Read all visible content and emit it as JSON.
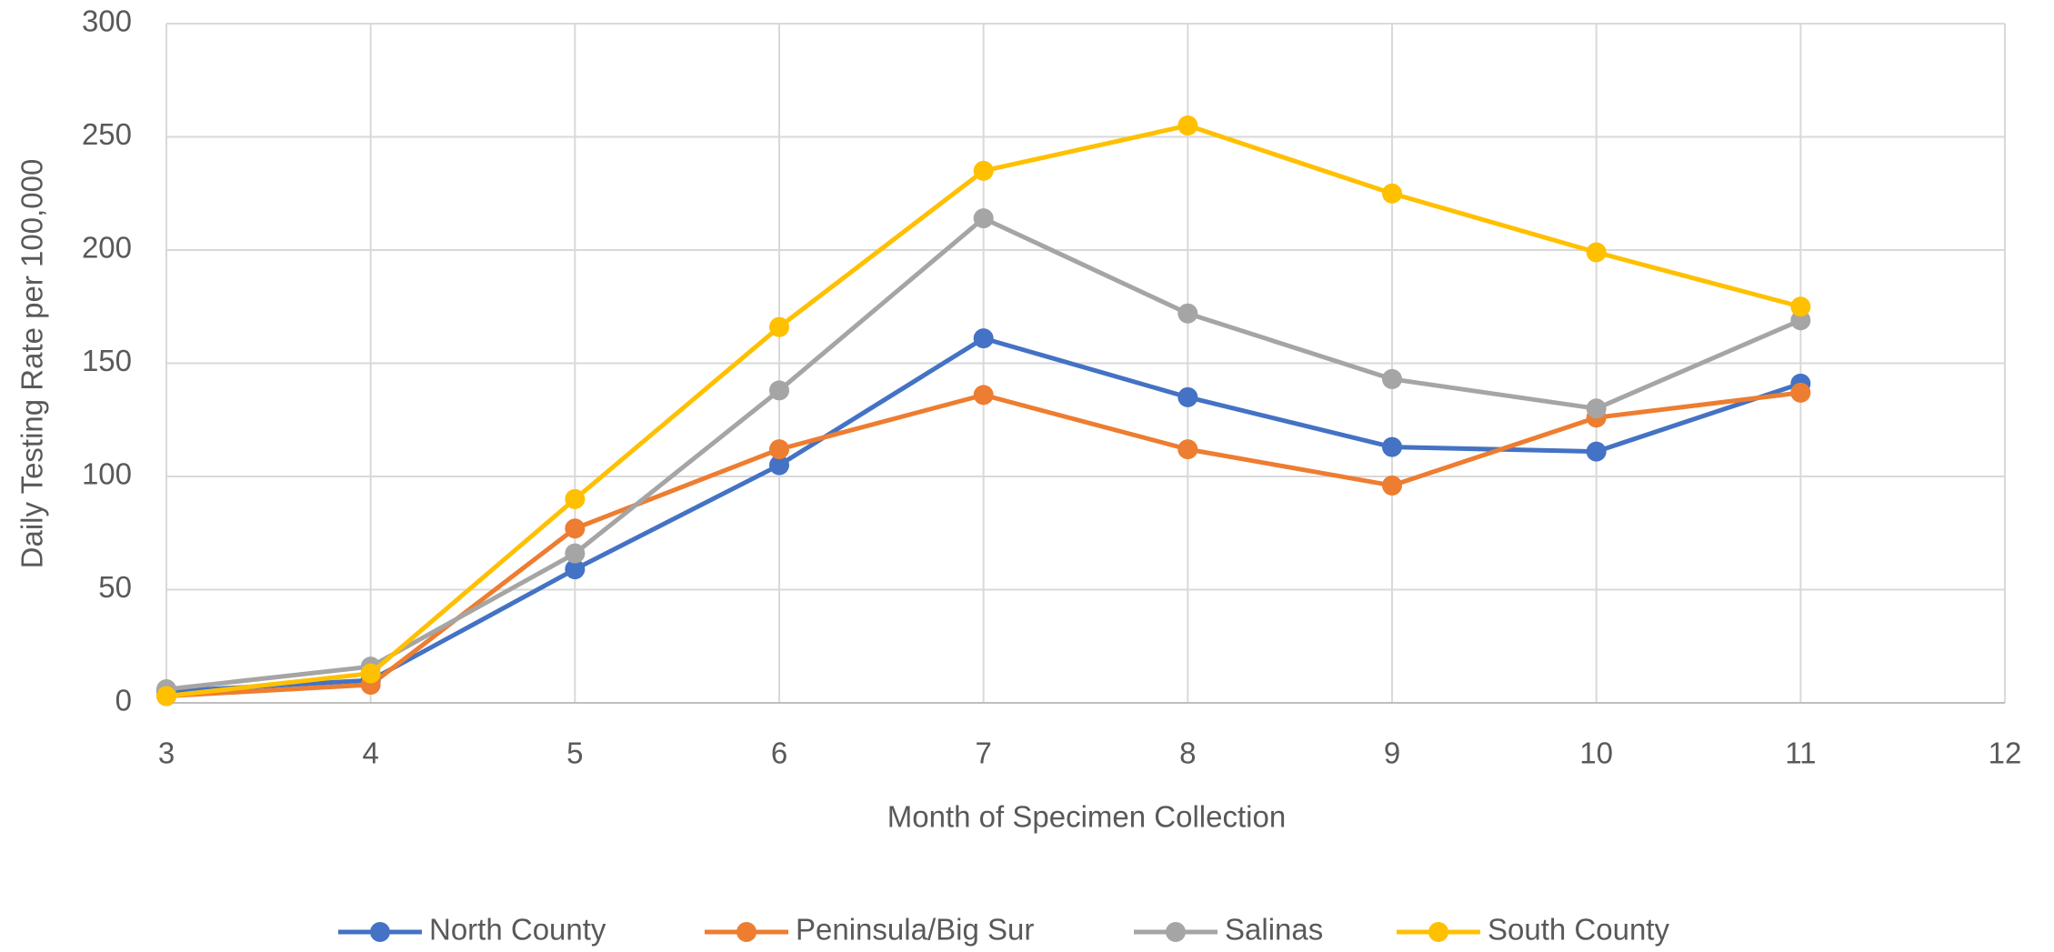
{
  "chart_data": {
    "type": "line",
    "x_label": "Month of Specimen Collection",
    "y_label": "Daily Testing Rate per 100,000",
    "x": [
      3,
      4,
      5,
      6,
      7,
      8,
      9,
      10,
      11
    ],
    "series": [
      {
        "name": "North County",
        "color": "#4472c4",
        "values": [
          5,
          10,
          59,
          105,
          161,
          135,
          113,
          111,
          141
        ]
      },
      {
        "name": "Peninsula/Big Sur",
        "color": "#ed7d31",
        "values": [
          3,
          8,
          77,
          112,
          136,
          112,
          96,
          126,
          137
        ]
      },
      {
        "name": "Salinas",
        "color": "#a5a5a5",
        "values": [
          6,
          16,
          66,
          138,
          214,
          172,
          143,
          130,
          169
        ]
      },
      {
        "name": "South County",
        "color": "#ffc000",
        "values": [
          3,
          13,
          90,
          166,
          235,
          255,
          225,
          199,
          175
        ]
      }
    ],
    "xlim": [
      3,
      12
    ],
    "xticks": [
      3,
      4,
      5,
      6,
      7,
      8,
      9,
      10,
      11,
      12
    ],
    "ylim": [
      0,
      300
    ],
    "yticks": [
      0,
      50,
      100,
      150,
      200,
      250,
      300
    ],
    "grid": true,
    "legend": "bottom"
  }
}
